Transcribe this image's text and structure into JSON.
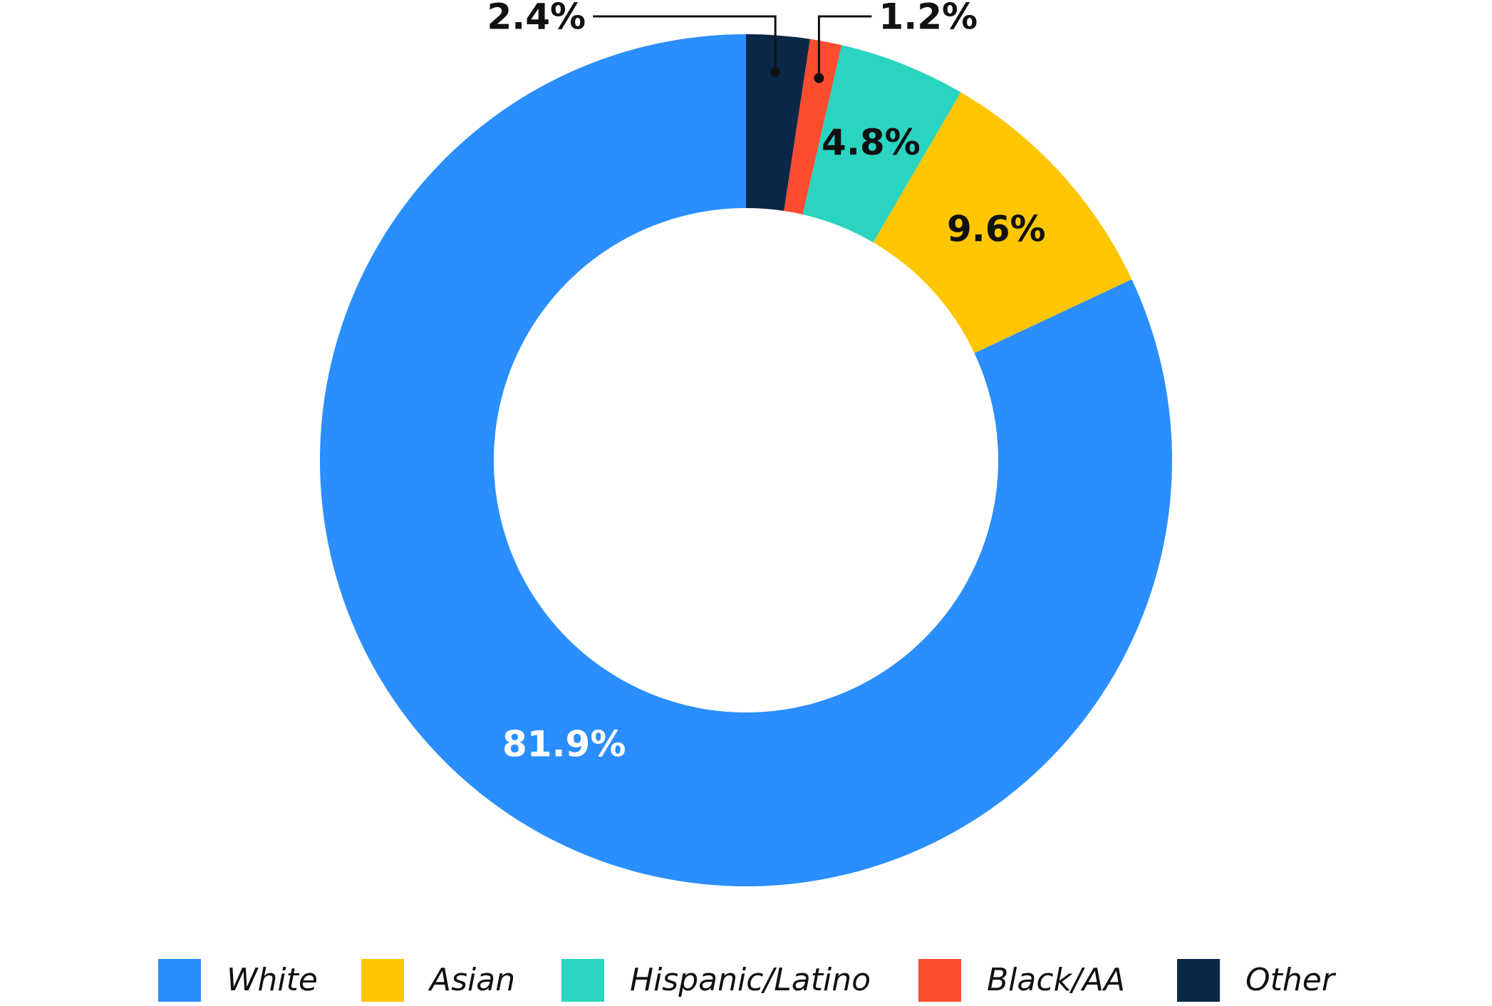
{
  "chart_data": {
    "type": "donut",
    "categories": [
      "White",
      "Asian",
      "Hispanic/Latino",
      "Black/AA",
      "Other"
    ],
    "values": [
      81.9,
      9.6,
      4.8,
      1.2,
      2.4
    ],
    "value_labels": [
      "81.9%",
      "9.6%",
      "4.8%",
      "1.2%",
      "2.4%"
    ],
    "colors": [
      "#2a8efe",
      "#fec601",
      "#2ad4c0",
      "#fe4c30",
      "#0a2748"
    ],
    "legend": "bottom"
  }
}
